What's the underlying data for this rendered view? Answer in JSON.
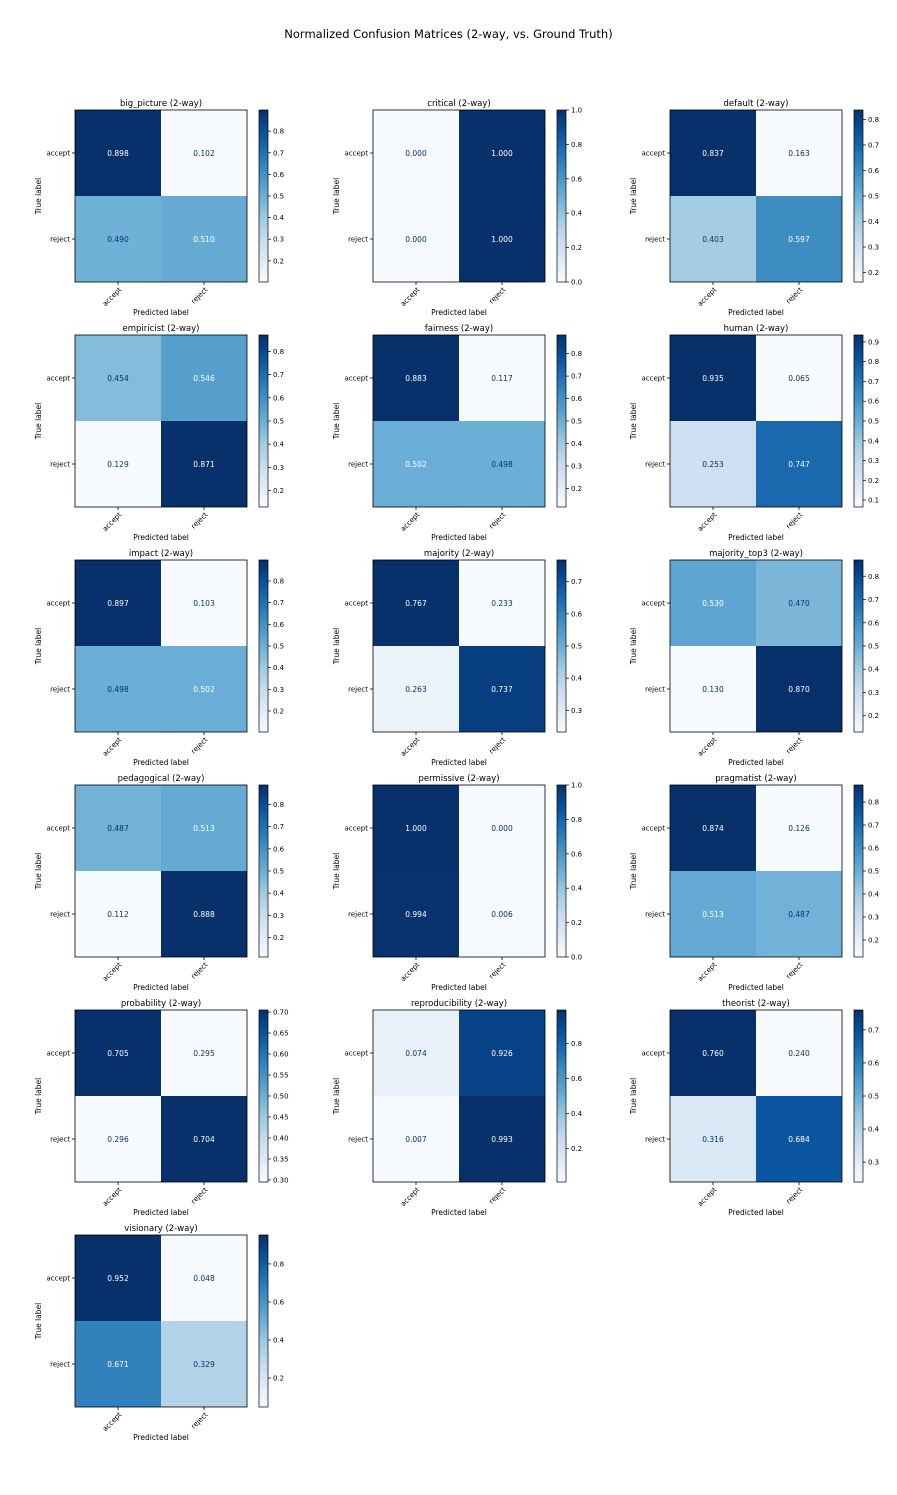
{
  "figure": {
    "title": "Normalized Confusion Matrices (2-way, vs. Ground Truth)"
  },
  "colormap": {
    "name": "Blues",
    "low": "#f7fbff",
    "high": "#08306b",
    "text_dark": "#08306b",
    "text_light": "#ffffff"
  },
  "chart_data": [
    {
      "type": "heatmap",
      "title": "big_picture (2-way)",
      "xlabel": "Predicted label",
      "ylabel": "True label",
      "x_categories": [
        "accept",
        "reject"
      ],
      "y_categories": [
        "accept",
        "reject"
      ],
      "values": [
        [
          0.898,
          0.102
        ],
        [
          0.49,
          0.51
        ]
      ],
      "colorbar_range": [
        0.102,
        0.898
      ],
      "colorbar_ticks": [
        0.2,
        0.3,
        0.4,
        0.5,
        0.6,
        0.7,
        0.8
      ]
    },
    {
      "type": "heatmap",
      "title": "critical (2-way)",
      "xlabel": "Predicted label",
      "ylabel": "True label",
      "x_categories": [
        "accept",
        "reject"
      ],
      "y_categories": [
        "accept",
        "reject"
      ],
      "values": [
        [
          0.0,
          1.0
        ],
        [
          0.0,
          1.0
        ]
      ],
      "colorbar_range": [
        0.0,
        1.0
      ],
      "colorbar_ticks": [
        0.0,
        0.2,
        0.4,
        0.6,
        0.8,
        1.0
      ]
    },
    {
      "type": "heatmap",
      "title": "default (2-way)",
      "xlabel": "Predicted label",
      "ylabel": "True label",
      "x_categories": [
        "accept",
        "reject"
      ],
      "y_categories": [
        "accept",
        "reject"
      ],
      "values": [
        [
          0.837,
          0.163
        ],
        [
          0.403,
          0.597
        ]
      ],
      "colorbar_range": [
        0.163,
        0.837
      ],
      "colorbar_ticks": [
        0.2,
        0.3,
        0.4,
        0.5,
        0.6,
        0.7,
        0.8
      ]
    },
    {
      "type": "heatmap",
      "title": "empiricist (2-way)",
      "xlabel": "Predicted label",
      "ylabel": "True label",
      "x_categories": [
        "accept",
        "reject"
      ],
      "y_categories": [
        "accept",
        "reject"
      ],
      "values": [
        [
          0.454,
          0.546
        ],
        [
          0.129,
          0.871
        ]
      ],
      "colorbar_range": [
        0.129,
        0.871
      ],
      "colorbar_ticks": [
        0.2,
        0.3,
        0.4,
        0.5,
        0.6,
        0.7,
        0.8
      ]
    },
    {
      "type": "heatmap",
      "title": "fairness (2-way)",
      "xlabel": "Predicted label",
      "ylabel": "True label",
      "x_categories": [
        "accept",
        "reject"
      ],
      "y_categories": [
        "accept",
        "reject"
      ],
      "values": [
        [
          0.883,
          0.117
        ],
        [
          0.502,
          0.498
        ]
      ],
      "colorbar_range": [
        0.117,
        0.883
      ],
      "colorbar_ticks": [
        0.2,
        0.3,
        0.4,
        0.5,
        0.6,
        0.7,
        0.8
      ]
    },
    {
      "type": "heatmap",
      "title": "human (2-way)",
      "xlabel": "Predicted label",
      "ylabel": "True label",
      "x_categories": [
        "accept",
        "reject"
      ],
      "y_categories": [
        "accept",
        "reject"
      ],
      "values": [
        [
          0.935,
          0.065
        ],
        [
          0.253,
          0.747
        ]
      ],
      "colorbar_range": [
        0.065,
        0.935
      ],
      "colorbar_ticks": [
        0.1,
        0.2,
        0.3,
        0.4,
        0.5,
        0.6,
        0.7,
        0.8,
        0.9
      ]
    },
    {
      "type": "heatmap",
      "title": "impact (2-way)",
      "xlabel": "Predicted label",
      "ylabel": "True label",
      "x_categories": [
        "accept",
        "reject"
      ],
      "y_categories": [
        "accept",
        "reject"
      ],
      "values": [
        [
          0.897,
          0.103
        ],
        [
          0.498,
          0.502
        ]
      ],
      "colorbar_range": [
        0.103,
        0.897
      ],
      "colorbar_ticks": [
        0.2,
        0.3,
        0.4,
        0.5,
        0.6,
        0.7,
        0.8
      ]
    },
    {
      "type": "heatmap",
      "title": "majority (2-way)",
      "xlabel": "Predicted label",
      "ylabel": "True label",
      "x_categories": [
        "accept",
        "reject"
      ],
      "y_categories": [
        "accept",
        "reject"
      ],
      "values": [
        [
          0.767,
          0.233
        ],
        [
          0.263,
          0.737
        ]
      ],
      "colorbar_range": [
        0.233,
        0.767
      ],
      "colorbar_ticks": [
        0.3,
        0.4,
        0.5,
        0.6,
        0.7
      ]
    },
    {
      "type": "heatmap",
      "title": "majority_top3 (2-way)",
      "xlabel": "Predicted label",
      "ylabel": "True label",
      "x_categories": [
        "accept",
        "reject"
      ],
      "y_categories": [
        "accept",
        "reject"
      ],
      "values": [
        [
          0.53,
          0.47
        ],
        [
          0.13,
          0.87
        ]
      ],
      "colorbar_range": [
        0.13,
        0.87
      ],
      "colorbar_ticks": [
        0.2,
        0.3,
        0.4,
        0.5,
        0.6,
        0.7,
        0.8
      ]
    },
    {
      "type": "heatmap",
      "title": "pedagogical (2-way)",
      "xlabel": "Predicted label",
      "ylabel": "True label",
      "x_categories": [
        "accept",
        "reject"
      ],
      "y_categories": [
        "accept",
        "reject"
      ],
      "values": [
        [
          0.487,
          0.513
        ],
        [
          0.112,
          0.888
        ]
      ],
      "colorbar_range": [
        0.112,
        0.888
      ],
      "colorbar_ticks": [
        0.2,
        0.3,
        0.4,
        0.5,
        0.6,
        0.7,
        0.8
      ]
    },
    {
      "type": "heatmap",
      "title": "permissive (2-way)",
      "xlabel": "Predicted label",
      "ylabel": "True label",
      "x_categories": [
        "accept",
        "reject"
      ],
      "y_categories": [
        "accept",
        "reject"
      ],
      "values": [
        [
          1.0,
          0.0
        ],
        [
          0.994,
          0.006
        ]
      ],
      "colorbar_range": [
        0.0,
        1.0
      ],
      "colorbar_ticks": [
        0.0,
        0.2,
        0.4,
        0.6,
        0.8,
        1.0
      ]
    },
    {
      "type": "heatmap",
      "title": "pragmatist (2-way)",
      "xlabel": "Predicted label",
      "ylabel": "True label",
      "x_categories": [
        "accept",
        "reject"
      ],
      "y_categories": [
        "accept",
        "reject"
      ],
      "values": [
        [
          0.874,
          0.126
        ],
        [
          0.513,
          0.487
        ]
      ],
      "colorbar_range": [
        0.126,
        0.874
      ],
      "colorbar_ticks": [
        0.2,
        0.3,
        0.4,
        0.5,
        0.6,
        0.7,
        0.8
      ]
    },
    {
      "type": "heatmap",
      "title": "probability (2-way)",
      "xlabel": "Predicted label",
      "ylabel": "True label",
      "x_categories": [
        "accept",
        "reject"
      ],
      "y_categories": [
        "accept",
        "reject"
      ],
      "values": [
        [
          0.705,
          0.295
        ],
        [
          0.296,
          0.704
        ]
      ],
      "colorbar_range": [
        0.295,
        0.705
      ],
      "colorbar_ticks": [
        0.3,
        0.35,
        0.4,
        0.45,
        0.5,
        0.55,
        0.6,
        0.65,
        0.7
      ]
    },
    {
      "type": "heatmap",
      "title": "reproducibility (2-way)",
      "xlabel": "Predicted label",
      "ylabel": "True label",
      "x_categories": [
        "accept",
        "reject"
      ],
      "y_categories": [
        "accept",
        "reject"
      ],
      "values": [
        [
          0.074,
          0.926
        ],
        [
          0.007,
          0.993
        ]
      ],
      "colorbar_range": [
        0.007,
        0.993
      ],
      "colorbar_ticks": [
        0.2,
        0.4,
        0.6,
        0.8
      ]
    },
    {
      "type": "heatmap",
      "title": "theorist (2-way)",
      "xlabel": "Predicted label",
      "ylabel": "True label",
      "x_categories": [
        "accept",
        "reject"
      ],
      "y_categories": [
        "accept",
        "reject"
      ],
      "values": [
        [
          0.76,
          0.24
        ],
        [
          0.316,
          0.684
        ]
      ],
      "colorbar_range": [
        0.24,
        0.76
      ],
      "colorbar_ticks": [
        0.3,
        0.4,
        0.5,
        0.6,
        0.7
      ]
    },
    {
      "type": "heatmap",
      "title": "visionary (2-way)",
      "xlabel": "Predicted label",
      "ylabel": "True label",
      "x_categories": [
        "accept",
        "reject"
      ],
      "y_categories": [
        "accept",
        "reject"
      ],
      "values": [
        [
          0.952,
          0.048
        ],
        [
          0.671,
          0.329
        ]
      ],
      "colorbar_range": [
        0.048,
        0.952
      ],
      "colorbar_ticks": [
        0.2,
        0.4,
        0.6,
        0.8
      ]
    }
  ]
}
